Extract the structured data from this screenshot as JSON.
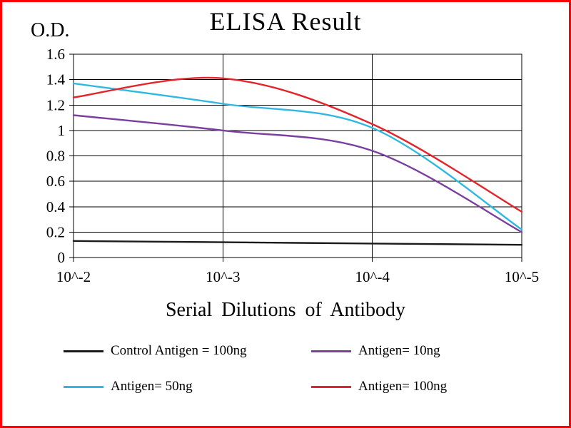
{
  "chart_data": {
    "type": "line",
    "title": "ELISA Result",
    "ylabel": "O.D.",
    "xlabel": "Serial Dilutions of Antibody",
    "categories": [
      "10^-2",
      "10^-3",
      "10^-4",
      "10^-5"
    ],
    "ylim": [
      0,
      1.6
    ],
    "ytick_step": 0.2,
    "grid": true,
    "legend_position": "bottom",
    "frame_color": "#ff0000",
    "axis_color": "#000000",
    "series": [
      {
        "name": "Control Antigen = 100ng",
        "color": "#1a1a1a",
        "values": [
          0.13,
          0.12,
          0.11,
          0.1
        ]
      },
      {
        "name": "Antigen= 10ng",
        "color": "#7b3fa0",
        "values": [
          1.12,
          1.0,
          0.84,
          0.2
        ]
      },
      {
        "name": "Antigen= 50ng",
        "color": "#2fb9e0",
        "values": [
          1.37,
          1.21,
          1.02,
          0.22
        ]
      },
      {
        "name": "Antigen= 100ng",
        "color": "#e3242b",
        "values": [
          1.26,
          1.41,
          1.05,
          0.36
        ]
      }
    ]
  }
}
